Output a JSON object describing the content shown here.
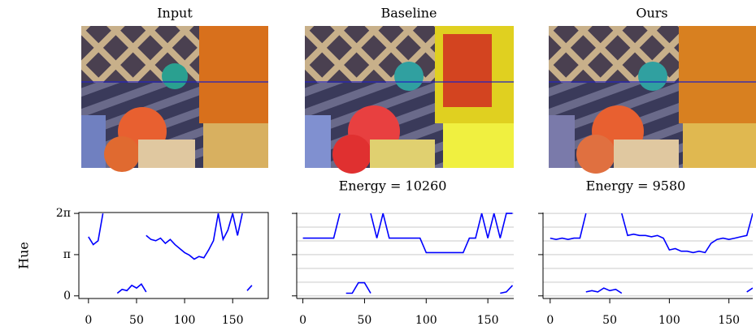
{
  "chart_data": [
    {
      "type": "line",
      "title": "Input",
      "ylabel": "Hue",
      "x": [
        0,
        5,
        10,
        15,
        20,
        25,
        30,
        35,
        40,
        45,
        50,
        55,
        60,
        65,
        70,
        75,
        80,
        85,
        90,
        95,
        100,
        105,
        110,
        115,
        120,
        125,
        130,
        135,
        140,
        145,
        150,
        155,
        160,
        165,
        170
      ],
      "series": [
        {
          "color": "#0000ff",
          "values": [
            4.5,
            3.9,
            4.2,
            6.28,
            null,
            null,
            null,
            null,
            null,
            null,
            null,
            null,
            4.6,
            4.3,
            4.2,
            4.4,
            4.0,
            4.3,
            3.9,
            3.6,
            3.3,
            3.1,
            2.8,
            3.0,
            2.9,
            3.5,
            4.2,
            6.28,
            4.3,
            5.0,
            6.28,
            4.6,
            6.28,
            null,
            null
          ]
        },
        {
          "color": "#0000ff",
          "values": [
            0.3,
            null,
            null,
            null,
            null,
            null,
            0.2,
            0.5,
            0.4,
            0.8,
            0.6,
            0.9,
            0.3,
            null,
            null,
            null,
            null,
            null,
            null,
            null,
            null,
            null,
            null,
            null,
            null,
            null,
            null,
            null,
            null,
            null,
            null,
            null,
            null,
            0.4,
            0.8
          ]
        }
      ],
      "xlim": [
        -10,
        187
      ],
      "ylim": [
        -0.2,
        6.35
      ],
      "xticks": [
        0,
        50,
        100,
        150
      ],
      "yticks": [
        0,
        {
          "value": 3.1416,
          "label": "π"
        },
        {
          "value": 6.2832,
          "label": "2π"
        }
      ]
    },
    {
      "type": "line",
      "title": "Baseline",
      "annotation": "Energy = 10260",
      "x": [
        0,
        5,
        10,
        15,
        20,
        25,
        30,
        35,
        40,
        45,
        50,
        55,
        60,
        65,
        70,
        75,
        80,
        85,
        90,
        95,
        100,
        105,
        110,
        115,
        120,
        125,
        130,
        135,
        140,
        145,
        150,
        155,
        160,
        165,
        170
      ],
      "series": [
        {
          "color": "#0000ff",
          "values": [
            4.4,
            4.4,
            4.4,
            4.4,
            4.4,
            4.4,
            6.28,
            null,
            null,
            null,
            null,
            6.28,
            4.4,
            6.28,
            4.4,
            4.4,
            4.4,
            4.4,
            4.4,
            4.4,
            3.3,
            3.3,
            3.3,
            3.3,
            3.3,
            3.3,
            3.3,
            4.4,
            4.4,
            6.28,
            4.4,
            6.28,
            4.4,
            6.28,
            6.28
          ]
        },
        {
          "color": "#0000ff",
          "values": [
            null,
            null,
            null,
            null,
            null,
            null,
            null,
            0.2,
            0.2,
            1.0,
            1.0,
            0.2,
            null,
            null,
            null,
            null,
            null,
            null,
            null,
            null,
            null,
            null,
            null,
            null,
            null,
            null,
            null,
            null,
            null,
            null,
            null,
            null,
            0.2,
            0.3,
            0.8
          ]
        }
      ],
      "xlim": [
        -5,
        171
      ],
      "ylim": [
        -0.2,
        6.35
      ],
      "xticks": [
        0,
        50,
        100,
        150
      ],
      "yticks": [
        0,
        3.1416,
        6.2832
      ],
      "show_ytick_labels": false,
      "ygrid": [
        0,
        1.0472,
        2.0944,
        3.1416,
        4.1888,
        5.236,
        6.2832
      ]
    },
    {
      "type": "line",
      "title": "Ours",
      "annotation": "Energy = 9580",
      "x": [
        0,
        5,
        10,
        15,
        20,
        25,
        30,
        35,
        40,
        45,
        50,
        55,
        60,
        65,
        70,
        75,
        80,
        85,
        90,
        95,
        100,
        105,
        110,
        115,
        120,
        125,
        130,
        135,
        140,
        145,
        150,
        155,
        160,
        165,
        170
      ],
      "series": [
        {
          "color": "#0000ff",
          "values": [
            4.4,
            4.3,
            4.4,
            4.3,
            4.4,
            4.4,
            6.28,
            null,
            null,
            null,
            null,
            null,
            6.28,
            4.6,
            4.7,
            4.6,
            4.6,
            4.5,
            4.6,
            4.4,
            3.5,
            3.6,
            3.4,
            3.4,
            3.3,
            3.4,
            3.3,
            4.0,
            4.3,
            4.4,
            4.3,
            4.4,
            4.5,
            4.6,
            6.28
          ]
        },
        {
          "color": "#0000ff",
          "values": [
            null,
            null,
            null,
            null,
            null,
            null,
            0.3,
            0.4,
            0.3,
            0.6,
            0.4,
            0.5,
            0.2,
            null,
            null,
            null,
            null,
            null,
            null,
            null,
            null,
            null,
            null,
            null,
            null,
            null,
            null,
            null,
            null,
            null,
            null,
            null,
            null,
            0.3,
            0.6
          ]
        }
      ],
      "xlim": [
        -6,
        170
      ],
      "ylim": [
        -0.2,
        6.35
      ],
      "xticks": [
        0,
        50,
        100,
        150
      ],
      "yticks": [
        0,
        3.1416,
        6.2832
      ],
      "show_ytick_labels": false,
      "ygrid": [
        0,
        1.0472,
        2.0944,
        3.1416,
        4.1888,
        5.236,
        6.2832
      ]
    }
  ]
}
